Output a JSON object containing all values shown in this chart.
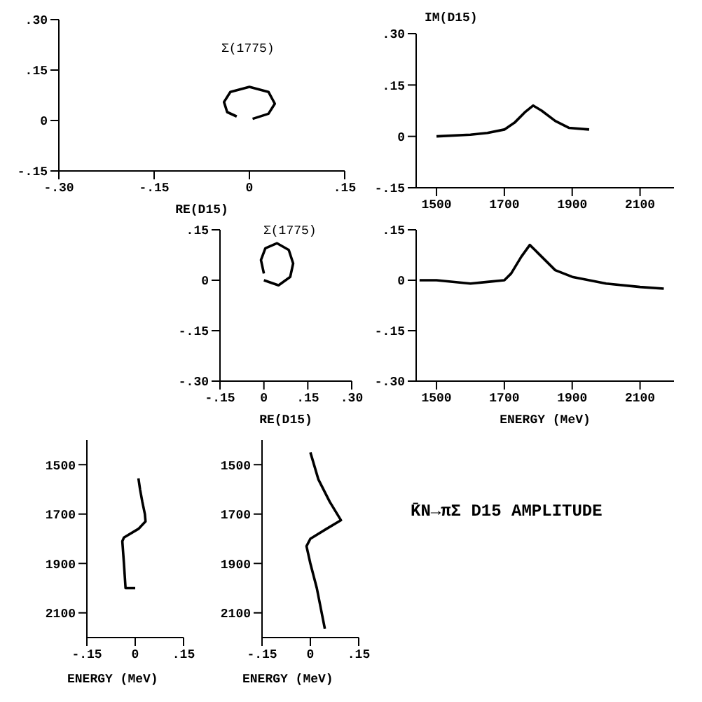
{
  "chart_data": [
    {
      "type": "line",
      "xlabel": "RE(D15)",
      "xlim": [
        -0.3,
        0.15
      ],
      "xticks": [
        {
          "value": -0.3,
          "label": "-.30"
        },
        {
          "value": -0.15,
          "label": "-.15"
        },
        0,
        {
          "value": 0.15,
          "label": ".15"
        }
      ],
      "ylim": [
        -0.15,
        0.3
      ],
      "yticks": [
        {
          "value": -0.15,
          "label": "-.15"
        },
        0,
        {
          "value": 0.15,
          "label": ".15"
        },
        {
          "value": 0.3,
          "label": ".30"
        }
      ],
      "annotations": [
        "Σ(1775)"
      ],
      "series": [
        {
          "color": "#000000",
          "x": [
            0.005,
            0.03,
            0.04,
            0.03,
            0.0,
            -0.03,
            -0.04,
            -0.035,
            -0.02
          ],
          "values": [
            0.005,
            0.02,
            0.05,
            0.085,
            0.1,
            0.085,
            0.055,
            0.025,
            0.012
          ]
        }
      ]
    },
    {
      "type": "line",
      "ylabel": "IM(D15)",
      "xlim": [
        1440,
        2200
      ],
      "xticks": [
        1500,
        1700,
        1900,
        2100
      ],
      "ylim": [
        -0.15,
        0.3
      ],
      "yticks": [
        {
          "value": -0.15,
          "label": "-.15"
        },
        0,
        {
          "value": 0.15,
          "label": ".15"
        },
        {
          "value": 0.3,
          "label": ".30"
        }
      ],
      "series": [
        {
          "color": "#000000",
          "x": [
            1500,
            1600,
            1650,
            1700,
            1730,
            1760,
            1785,
            1810,
            1850,
            1890,
            1950
          ],
          "values": [
            0,
            0.005,
            0.01,
            0.02,
            0.04,
            0.07,
            0.09,
            0.075,
            0.045,
            0.025,
            0.02
          ]
        }
      ]
    },
    {
      "type": "line",
      "xlabel": "RE(D15)",
      "xlim": [
        -0.15,
        0.3
      ],
      "xticks": [
        {
          "value": -0.15,
          "label": "-.15"
        },
        0,
        {
          "value": 0.15,
          "label": ".15"
        },
        {
          "value": 0.3,
          "label": ".30"
        }
      ],
      "ylim": [
        -0.3,
        0.15
      ],
      "yticks": [
        {
          "value": -0.3,
          "label": "-.30"
        },
        {
          "value": -0.15,
          "label": "-.15"
        },
        0,
        {
          "value": 0.15,
          "label": ".15"
        }
      ],
      "annotations": [
        "Σ(1775)"
      ],
      "series": [
        {
          "color": "#000000",
          "x": [
            0.0,
            0.05,
            0.09,
            0.1,
            0.085,
            0.045,
            0.005,
            -0.01,
            0.0
          ],
          "values": [
            0.0,
            -0.015,
            0.01,
            0.05,
            0.09,
            0.11,
            0.095,
            0.06,
            0.02
          ]
        }
      ]
    },
    {
      "type": "line",
      "xlabel": "ENERGY (MeV)",
      "xlim": [
        1440,
        2200
      ],
      "xticks": [
        1500,
        1700,
        1900,
        2100
      ],
      "ylim": [
        -0.3,
        0.15
      ],
      "yticks": [
        {
          "value": -0.3,
          "label": "-.30"
        },
        {
          "value": -0.15,
          "label": "-.15"
        },
        0,
        {
          "value": 0.15,
          "label": ".15"
        }
      ],
      "series": [
        {
          "color": "#000000",
          "x": [
            1450,
            1500,
            1600,
            1650,
            1700,
            1720,
            1750,
            1775,
            1800,
            1850,
            1900,
            1950,
            2000,
            2100,
            2170
          ],
          "values": [
            0,
            0,
            -0.01,
            -0.005,
            0,
            0.02,
            0.07,
            0.105,
            0.08,
            0.03,
            0.01,
            0,
            -0.01,
            -0.02,
            -0.025
          ]
        }
      ]
    },
    {
      "type": "line",
      "orientation": "horizontal",
      "annotations": [
        "ENERGY (MeV)"
      ],
      "ylim": [
        2200,
        1400
      ],
      "yticks": [
        1500,
        1700,
        1900,
        2100
      ],
      "xlim": [
        -0.15,
        0.15
      ],
      "xticks": [
        {
          "value": -0.15,
          "label": "-.15"
        },
        0,
        {
          "value": 0.15,
          "label": ".15"
        }
      ],
      "series": [
        {
          "color": "#000000",
          "x": [
            1555,
            1600,
            1650,
            1700,
            1730,
            1760,
            1795,
            1810,
            1900,
            2000,
            2000
          ],
          "values": [
            0.01,
            0.015,
            0.022,
            0.03,
            0.032,
            0.01,
            -0.035,
            -0.04,
            -0.035,
            -0.03,
            0
          ]
        }
      ]
    },
    {
      "type": "line",
      "orientation": "horizontal",
      "annotations": [
        "ENERGY (MeV)"
      ],
      "ylim": [
        2200,
        1400
      ],
      "yticks": [
        1500,
        1700,
        1900,
        2100
      ],
      "xlim": [
        -0.15,
        0.15
      ],
      "xticks": [
        {
          "value": -0.15,
          "label": "-.15"
        },
        0,
        {
          "value": 0.15,
          "label": ".15"
        }
      ],
      "series": [
        {
          "color": "#000000",
          "x": [
            1450,
            1560,
            1650,
            1725,
            1760,
            1800,
            1830,
            1900,
            2000,
            2165
          ],
          "values": [
            0,
            0.025,
            0.06,
            0.095,
            0.05,
            0,
            -0.012,
            0,
            0.02,
            0.045
          ]
        }
      ]
    },
    {
      "type": "other",
      "title": "K̄N→πΣ D15 AMPLITUDE"
    }
  ]
}
